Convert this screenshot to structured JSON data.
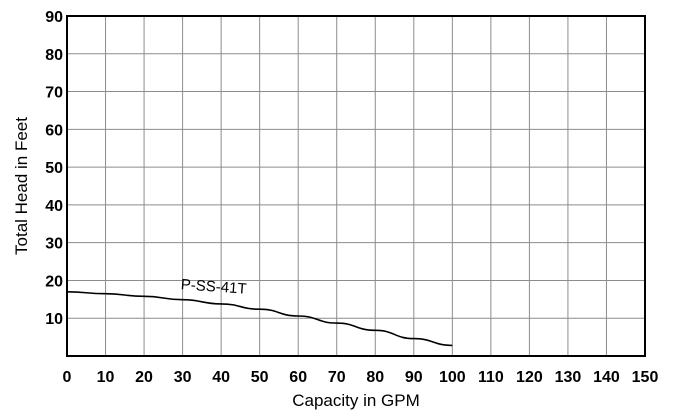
{
  "chart_data": {
    "type": "line",
    "title": "",
    "xlabel": "Capacity in GPM",
    "ylabel": "Total Head in Feet",
    "xlim": [
      0,
      150
    ],
    "ylim": [
      0,
      90
    ],
    "x_ticks": [
      "0",
      "10",
      "20",
      "30",
      "40",
      "50",
      "60",
      "70",
      "80",
      "90",
      "100",
      "110",
      "120",
      "130",
      "140",
      "150"
    ],
    "y_ticks": [
      "90",
      "80",
      "70",
      "60",
      "50",
      "40",
      "30",
      "20",
      "10"
    ],
    "grid": true,
    "series": [
      {
        "name": "P-SS-41T",
        "color": "#000000",
        "x": [
          0,
          10,
          20,
          30,
          40,
          50,
          60,
          70,
          80,
          90,
          100
        ],
        "y": [
          17,
          16.5,
          15.8,
          14.9,
          13.8,
          12.4,
          10.6,
          8.7,
          6.8,
          4.6,
          2.8
        ]
      }
    ]
  }
}
